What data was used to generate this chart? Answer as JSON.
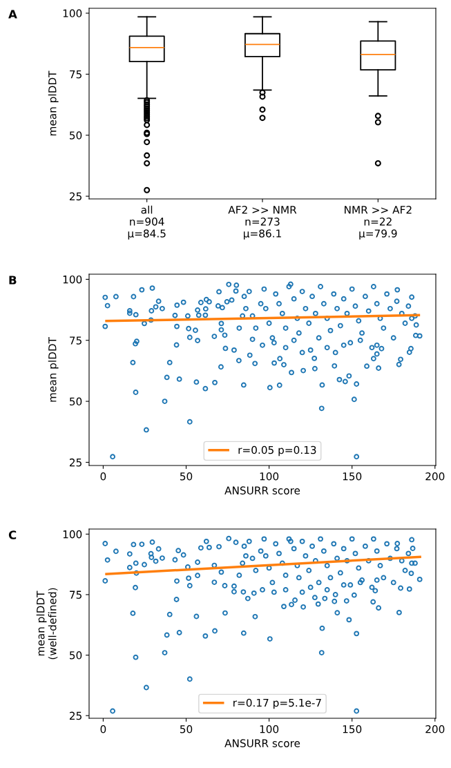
{
  "chart_data": [
    {
      "type": "box",
      "title": "A",
      "ylabel": "mean plDDT",
      "categories": [
        "all\nn=904\nμ=84.5",
        "AF2 >> NMR\nn=273\nμ=86.1",
        "NMR >> AF2\nn=22\nμ=79.9"
      ],
      "ylim": [
        23.9,
        102
      ],
      "yticks": [
        25,
        50,
        75,
        100
      ],
      "grid": false,
      "boxes": [
        {
          "low": 65.1,
          "q1": 80.2,
          "median": 85.9,
          "q3": 90.6,
          "high": 98.5,
          "outliers": [
            64.3,
            63.5,
            62.6,
            61.8,
            61,
            60.2,
            59.4,
            58.6,
            57.8,
            57,
            56.2,
            54.2,
            51,
            50.5,
            47.2,
            41.7,
            38.5,
            27.5
          ]
        },
        {
          "low": 68.5,
          "q1": 82.2,
          "median": 87.2,
          "q3": 91.6,
          "high": 98.5,
          "outliers": [
            67.5,
            65.8,
            60.5,
            57.1
          ]
        },
        {
          "low": 66.1,
          "q1": 76.8,
          "median": 83.1,
          "q3": 88.6,
          "high": 96.5,
          "outliers": [
            57.9,
            55.3,
            38.5
          ]
        }
      ]
    },
    {
      "type": "scatter",
      "title": "B",
      "xlabel": "ANSURR score",
      "ylabel": "mean plDDT",
      "xlim": [
        -8.5,
        200.5
      ],
      "ylim": [
        23.7,
        102.1
      ],
      "xticks": [
        0,
        50,
        100,
        150,
        200
      ],
      "yticks": [
        25,
        50,
        75,
        100
      ],
      "grid": false,
      "legend": "bottom",
      "series": [
        {
          "type": "scatter",
          "marker": "circle",
          "color": "#1f77b4",
          "x": [
            1.2,
            2.6,
            1.2,
            5.7,
            7.7,
            16,
            16,
            19.7,
            18.3,
            23.3,
            24.8,
            29.6,
            28.8,
            29.1,
            33.4,
            31.7,
            35.6,
            19.4,
            20.2,
            17.9,
            19.6,
            26,
            37.1,
            38.4,
            40.1,
            45.9,
            43.3,
            44.5,
            48.4,
            44.4,
            44.2,
            51,
            51.5,
            52.2,
            52.2,
            55.6,
            56.9,
            56.9,
            57.6,
            58.9,
            61.6,
            61.8,
            62.2,
            63.9,
            56.2,
            61.6,
            67.3,
            67,
            69.8,
            69.3,
            71.8,
            71.2,
            71.2,
            71,
            73.3,
            73.7,
            74.6,
            75.7,
            77.5,
            80.3,
            80,
            78.9,
            81.8,
            84.7,
            88.4,
            91.5,
            90,
            100.5,
            106.3,
            103.1,
            106.5,
            108.9,
            113.5,
            120.6,
            127.6,
            132,
            131.7,
            127.3,
            139.4,
            142.4,
            145.9,
            148.2,
            152.7,
            151.3,
            152.7,
            158.9,
            166,
            163,
            165,
            167.8,
            178.3,
            179.3,
            184.6,
            185.5,
            188.4,
            190.8,
            188.7,
            186,
            177.3,
            85,
            88,
            90,
            92,
            95,
            97,
            98,
            100,
            102,
            104,
            106,
            108,
            110,
            112,
            113,
            115,
            117,
            118,
            120,
            122,
            124,
            126,
            128,
            130,
            131,
            133,
            135,
            137,
            139,
            141,
            143,
            145,
            147,
            149,
            150,
            152,
            154,
            156,
            158,
            160,
            162,
            163,
            165,
            167,
            169,
            171,
            173,
            175,
            177,
            180,
            182,
            184,
            186,
            188,
            96,
            103,
            110,
            115,
            125,
            135,
            145,
            155,
            165,
            82,
            84,
            86,
            140,
            120
          ],
          "values": [
            92.6,
            89.2,
            80.7,
            27.3,
            92.9,
            87.1,
            86.1,
            85.5,
            92.9,
            95.7,
            81.9,
            96.4,
            83.3,
            87.1,
            91,
            88.7,
            88,
            73.6,
            74.6,
            65.9,
            53.7,
            38.3,
            50,
            59.8,
            65.9,
            59.1,
            85.2,
            89.4,
            90.6,
            80.7,
            73.1,
            85,
            79.8,
            76.2,
            41.6,
            79.1,
            74.9,
            87.4,
            85.3,
            90.5,
            85.3,
            87.9,
            91.7,
            90.8,
            57.9,
            55.2,
            57.7,
            76.6,
            94.9,
            89.1,
            88.4,
            81.9,
            79.3,
            64.1,
            77.1,
            71.7,
            90.8,
            97.9,
            91.5,
            97.6,
            95.2,
            71,
            66.7,
            56.7,
            68.9,
            65.5,
            75.4,
            55.6,
            56.6,
            65.7,
            67.5,
            65,
            61.8,
            62.6,
            63.4,
            56.7,
            47.1,
            67.6,
            64.5,
            58.9,
            58.1,
            60.4,
            57.1,
            50.8,
            27.3,
            64.4,
            63.6,
            67.5,
            69.4,
            71.6,
            65.1,
            67.2,
            70.1,
            71.6,
            77,
            76.8,
            81.3,
            92.7,
            95.7,
            93,
            95,
            85,
            80,
            90,
            96,
            88,
            82,
            76,
            94,
            90,
            86,
            80,
            97,
            98,
            92,
            84,
            78,
            95,
            88,
            82,
            93,
            86,
            76,
            97,
            90,
            84,
            79,
            94,
            88,
            81,
            92,
            86,
            74,
            96,
            89,
            83,
            78,
            93,
            87,
            72,
            97,
            90,
            84,
            80,
            94,
            88,
            76,
            91,
            86,
            82,
            89,
            84,
            85,
            73,
            74,
            72,
            75,
            71,
            72,
            73,
            75,
            73,
            80,
            85,
            88,
            70,
            70
          ]
        },
        {
          "type": "line",
          "name": "r=0.05 p=0.13",
          "color": "#ff7f0e",
          "x": [
            1.2,
            191
          ],
          "values": [
            82.9,
            85.3
          ]
        }
      ]
    },
    {
      "type": "scatter",
      "title": "C",
      "xlabel": "ANSURR score",
      "ylabel": "mean plDDT\n(well-defined)",
      "xlim": [
        -8.5,
        200.5
      ],
      "ylim": [
        23.9,
        102.1
      ],
      "xticks": [
        0,
        50,
        100,
        150,
        200
      ],
      "yticks": [
        25,
        50,
        75,
        100
      ],
      "grid": false,
      "legend": "bottom",
      "series": [
        {
          "type": "scatter",
          "marker": "circle",
          "color": "#1f77b4",
          "x": [
            1.2,
            2.6,
            1.2,
            5.7,
            7.7,
            16,
            16,
            19.7,
            20,
            18.3,
            23.3,
            24.8,
            29.6,
            28.8,
            29.1,
            33.4,
            31.7,
            35.6,
            19.4,
            17.9,
            19.6,
            26,
            37.1,
            38.4,
            40.1,
            45.9,
            43.3,
            45.3,
            48.4,
            44.4,
            44.2,
            51,
            51.5,
            52.2,
            52.2,
            56.9,
            56.2,
            56.9,
            58.9,
            62.2,
            63.9,
            61.6,
            67.3,
            67,
            67,
            69.8,
            71.2,
            73.5,
            73.3,
            75.7,
            80,
            78.9,
            78.9,
            84.7,
            84.5,
            87.2,
            91.6,
            90.9,
            100.5,
            108.9,
            113.5,
            115.6,
            120.6,
            127.6,
            129.6,
            132,
            131.7,
            133.6,
            139.4,
            141.1,
            146.7,
            148.2,
            152.7,
            152.7,
            151.3,
            162.7,
            166,
            164,
            178.4,
            179.3,
            184.6,
            185.7,
            190.8,
            186,
            177.3,
            186.6,
            85,
            88,
            90,
            92,
            95,
            97,
            98,
            100,
            102,
            104,
            106,
            108,
            110,
            112,
            113,
            115,
            117,
            118,
            120,
            122,
            124,
            126,
            128,
            130,
            131,
            133,
            135,
            137,
            139,
            141,
            143,
            145,
            147,
            149,
            150,
            152,
            154,
            156,
            158,
            160,
            162,
            163,
            165,
            167,
            169,
            171,
            173,
            175,
            177,
            180,
            182,
            184,
            186,
            188,
            96,
            103,
            110,
            125,
            135,
            145,
            155,
            165,
            82,
            84,
            86,
            140,
            120
          ],
          "values": [
            96.1,
            89.3,
            80.7,
            26.9,
            92.9,
            91.8,
            86.2,
            88,
            83.9,
            95.7,
            95.8,
            87.4,
            96.7,
            91.9,
            90.4,
            93.9,
            88.8,
            90.1,
            77.9,
            67.3,
            49.1,
            36.6,
            51,
            58.3,
            66.8,
            59.3,
            89.4,
            93.2,
            91.4,
            80.6,
            73,
            86.4,
            81.8,
            78.7,
            40.1,
            82.9,
            66,
            88.4,
            94.3,
            97,
            94.5,
            57.9,
            60,
            80.1,
            87.1,
            94.8,
            84.3,
            67.4,
            78.7,
            98.2,
            96.6,
            78.5,
            76.2,
            59.1,
            76.1,
            73.4,
            65.9,
            75.6,
            56.7,
            70.1,
            70.9,
            72.7,
            69.9,
            73.8,
            71.1,
            61.1,
            51,
            73.4,
            72.2,
            67.5,
            72.4,
            64.6,
            58.9,
            26.9,
            74.8,
            72,
            69.5,
            76.6,
            67.6,
            77.7,
            77.3,
            83.8,
            81.3,
            97.7,
            96.1,
            94.1,
            95,
            97,
            90,
            85,
            93,
            98,
            91,
            86,
            80,
            96,
            92,
            88,
            83,
            98,
            97,
            94,
            87,
            82,
            97,
            91,
            85,
            95,
            89,
            80,
            98,
            93,
            87,
            82,
            96,
            90,
            84,
            94,
            89,
            79,
            98,
            92,
            86,
            81,
            95,
            89,
            78,
            98,
            93,
            87,
            82,
            96,
            90,
            80,
            94,
            89,
            85,
            92,
            88,
            88,
            77,
            76,
            77,
            78,
            77,
            79,
            80,
            81,
            83,
            88,
            91,
            75,
            76
          ]
        },
        {
          "type": "line",
          "name": "r=0.17 p=5.1e-7",
          "color": "#ff7f0e",
          "x": [
            1.2,
            191.7
          ],
          "values": [
            83.5,
            90.6
          ]
        }
      ]
    }
  ]
}
